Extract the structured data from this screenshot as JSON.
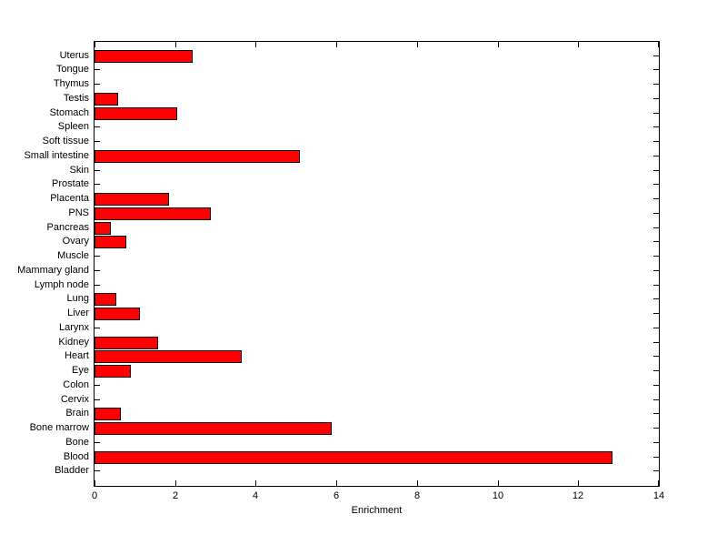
{
  "chart_data": {
    "type": "bar",
    "orientation": "horizontal",
    "title": "",
    "xlabel": "Enrichment",
    "ylabel": "",
    "xlim": [
      0,
      14
    ],
    "xticks": [
      0,
      2,
      4,
      6,
      8,
      10,
      12,
      14
    ],
    "grid": false,
    "legend": "none",
    "bar_color": "#FF0000",
    "bar_edge_color": "#000000",
    "axis_color": "#000000",
    "background_color": "#FFFFFF",
    "categories": [
      "Uterus",
      "Tongue",
      "Thymus",
      "Testis",
      "Stomach",
      "Spleen",
      "Soft tissue",
      "Small intestine",
      "Skin",
      "Prostate",
      "Placenta",
      "PNS",
      "Pancreas",
      "Ovary",
      "Muscle",
      "Mammary gland",
      "Lymph node",
      "Lung",
      "Liver",
      "Larynx",
      "Kidney",
      "Heart",
      "Eye",
      "Colon",
      "Cervix",
      "Brain",
      "Bone marrow",
      "Bone",
      "Blood",
      "Bladder"
    ],
    "values": [
      2.38,
      0,
      0,
      0.55,
      2.0,
      0,
      0,
      5.05,
      0,
      0,
      1.81,
      2.84,
      0.37,
      0.75,
      0,
      0,
      0,
      0.5,
      1.09,
      0,
      1.54,
      3.6,
      0.85,
      0,
      0,
      0.6,
      5.84,
      0,
      12.8,
      0
    ]
  }
}
